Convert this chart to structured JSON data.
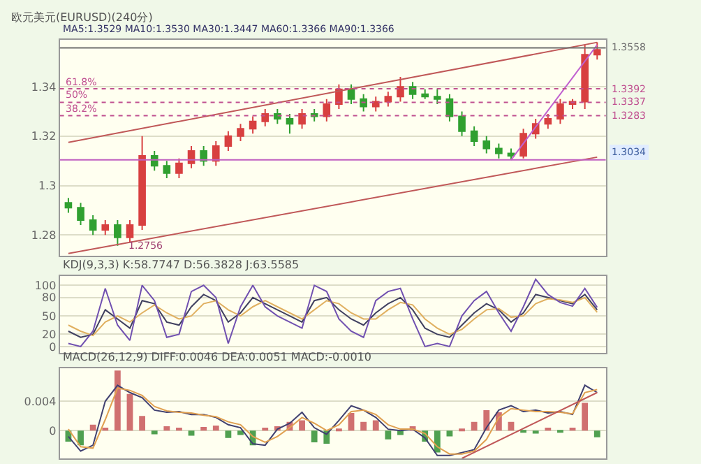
{
  "chart_data": [
    {
      "type": "candlestick",
      "title": "欧元美元(EURUSD)(240分)",
      "subtitle": "MA5:1.3529 MA10:1.3530 MA30:1.3447 MA60:1.3366 MA90:1.3366",
      "categories": [
        null,
        null,
        null,
        null,
        null,
        null,
        null,
        null,
        null,
        null,
        null,
        null,
        null,
        null,
        null,
        null,
        null,
        null,
        null,
        null,
        null,
        null,
        null,
        null,
        null,
        null,
        null,
        null,
        null,
        null,
        null,
        null,
        null,
        null,
        null,
        null,
        null,
        null,
        null,
        null,
        null,
        null,
        null,
        null
      ],
      "ohlc": [
        [
          1.293,
          1.295,
          1.289,
          1.291
        ],
        [
          1.291,
          1.293,
          1.284,
          1.286
        ],
        [
          1.286,
          1.288,
          1.28,
          1.282
        ],
        [
          1.282,
          1.286,
          1.28,
          1.284
        ],
        [
          1.284,
          1.286,
          1.2756,
          1.279
        ],
        [
          1.279,
          1.286,
          1.277,
          1.284
        ],
        [
          1.284,
          1.32,
          1.282,
          1.312
        ],
        [
          1.312,
          1.314,
          1.306,
          1.308
        ],
        [
          1.308,
          1.31,
          1.303,
          1.305
        ],
        [
          1.305,
          1.311,
          1.303,
          1.309
        ],
        [
          1.309,
          1.316,
          1.307,
          1.314
        ],
        [
          1.314,
          1.316,
          1.308,
          1.31
        ],
        [
          1.31,
          1.318,
          1.308,
          1.316
        ],
        [
          1.316,
          1.322,
          1.314,
          1.32
        ],
        [
          1.32,
          1.325,
          1.318,
          1.323
        ],
        [
          1.323,
          1.328,
          1.321,
          1.326
        ],
        [
          1.326,
          1.331,
          1.324,
          1.329
        ],
        [
          1.329,
          1.331,
          1.325,
          1.327
        ],
        [
          1.327,
          1.329,
          1.321,
          1.325
        ],
        [
          1.325,
          1.331,
          1.323,
          1.329
        ],
        [
          1.329,
          1.331,
          1.326,
          1.328
        ],
        [
          1.328,
          1.335,
          1.326,
          1.333
        ],
        [
          1.333,
          1.341,
          1.331,
          1.339
        ],
        [
          1.339,
          1.341,
          1.333,
          1.335
        ],
        [
          1.335,
          1.337,
          1.33,
          1.332
        ],
        [
          1.332,
          1.336,
          1.33,
          1.334
        ],
        [
          1.334,
          1.338,
          1.332,
          1.336
        ],
        [
          1.336,
          1.344,
          1.334,
          1.34
        ],
        [
          1.34,
          1.342,
          1.335,
          1.337
        ],
        [
          1.337,
          1.339,
          1.335,
          1.336
        ],
        [
          1.336,
          1.339,
          1.333,
          1.335
        ],
        [
          1.335,
          1.337,
          1.326,
          1.328
        ],
        [
          1.328,
          1.33,
          1.32,
          1.322
        ],
        [
          1.322,
          1.324,
          1.316,
          1.318
        ],
        [
          1.318,
          1.32,
          1.313,
          1.315
        ],
        [
          1.315,
          1.317,
          1.311,
          1.313
        ],
        [
          1.313,
          1.315,
          1.3104,
          1.312
        ],
        [
          1.312,
          1.323,
          1.311,
          1.321
        ],
        [
          1.321,
          1.327,
          1.319,
          1.325
        ],
        [
          1.325,
          1.329,
          1.323,
          1.327
        ],
        [
          1.327,
          1.335,
          1.325,
          1.333
        ],
        [
          1.333,
          1.335,
          1.331,
          1.334
        ],
        [
          1.334,
          1.357,
          1.331,
          1.353
        ],
        [
          1.353,
          1.358,
          1.351,
          1.355
        ]
      ],
      "colors": [
        "#30a030",
        "#30a030",
        "#30a030",
        "#d84040",
        "#30a030",
        "#d84040",
        "#d84040",
        "#30a030",
        "#30a030",
        "#d84040",
        "#d84040",
        "#30a030",
        "#d84040",
        "#d84040",
        "#d84040",
        "#d84040",
        "#d84040",
        "#30a030",
        "#30a030",
        "#d84040",
        "#30a030",
        "#d84040",
        "#d84040",
        "#30a030",
        "#30a030",
        "#d84040",
        "#d84040",
        "#d84040",
        "#30a030",
        "#30a030",
        "#30a030",
        "#30a030",
        "#30a030",
        "#30a030",
        "#30a030",
        "#30a030",
        "#30a030",
        "#d84040",
        "#d84040",
        "#d84040",
        "#d84040",
        "#d84040",
        "#d84040",
        "#d84040"
      ],
      "series": [
        {
          "type": "line",
          "color": "#c05858",
          "values": [
            1.2725,
            null,
            null,
            null,
            null,
            null,
            null,
            null,
            null,
            null,
            null,
            null,
            null,
            null,
            null,
            null,
            null,
            null,
            null,
            null,
            null,
            null,
            null,
            null,
            null,
            null,
            null,
            null,
            null,
            null,
            null,
            null,
            null,
            null,
            null,
            null,
            null,
            null,
            null,
            null,
            null,
            null,
            null,
            1.3115
          ]
        },
        {
          "type": "line",
          "color": "#c05858",
          "values": [
            1.3175,
            null,
            null,
            null,
            null,
            null,
            null,
            null,
            null,
            null,
            null,
            null,
            null,
            null,
            null,
            null,
            null,
            null,
            null,
            null,
            null,
            null,
            null,
            null,
            null,
            null,
            null,
            null,
            null,
            null,
            null,
            null,
            null,
            null,
            null,
            null,
            null,
            null,
            null,
            null,
            null,
            null,
            null,
            1.358
          ]
        },
        {
          "type": "line",
          "color": "#c060d0",
          "values": [
            null,
            null,
            null,
            null,
            null,
            null,
            null,
            null,
            null,
            null,
            null,
            null,
            null,
            null,
            null,
            null,
            null,
            null,
            null,
            null,
            null,
            null,
            null,
            null,
            null,
            null,
            null,
            null,
            null,
            null,
            null,
            null,
            null,
            null,
            null,
            null,
            1.3104,
            null,
            null,
            null,
            null,
            null,
            null,
            1.357
          ]
        }
      ],
      "ylim": [
        1.2715,
        1.359
      ],
      "yticks": [
        1.28,
        1.3,
        1.32,
        1.34
      ],
      "grid": "y",
      "ref_lines": [
        {
          "axis": "y",
          "value": 1.3558,
          "label": "1.3558",
          "color": "#707070",
          "line_style": "solid"
        },
        {
          "axis": "y",
          "value": 1.3392,
          "label": "1.3392",
          "color": "#c05090",
          "line_style": "dotted"
        },
        {
          "axis": "y",
          "value": 1.3337,
          "label": "1.3337",
          "color": "#c05090",
          "line_style": "dotted"
        },
        {
          "axis": "y",
          "value": 1.3283,
          "label": "1.3283",
          "color": "#c05090",
          "line_style": "dotted"
        },
        {
          "axis": "y",
          "value": 1.3104,
          "color": "#c060c0",
          "line_style": "solid"
        }
      ],
      "annotations": [
        "61.8%",
        "50%",
        "38.2%",
        "1.3034",
        {
          "text": "1.2756",
          "y": 1.2756
        }
      ]
    },
    {
      "type": "line",
      "title": "KDJ(9,3,3) K:58.7747 D:56.3828 J:63.5585",
      "categories": [
        null,
        null,
        null,
        null,
        null,
        null,
        null,
        null,
        null,
        null,
        null,
        null,
        null,
        null,
        null,
        null,
        null,
        null,
        null,
        null,
        null,
        null,
        null,
        null,
        null,
        null,
        null,
        null,
        null,
        null,
        null,
        null,
        null,
        null,
        null,
        null,
        null,
        null,
        null,
        null,
        null,
        null,
        null,
        null
      ],
      "series": [
        {
          "color": "#404060",
          "values": [
            25,
            15,
            20,
            60,
            45,
            30,
            75,
            70,
            40,
            35,
            65,
            85,
            75,
            40,
            55,
            80,
            70,
            60,
            50,
            40,
            75,
            80,
            60,
            45,
            35,
            55,
            70,
            80,
            60,
            30,
            20,
            15,
            35,
            55,
            70,
            60,
            40,
            55,
            85,
            80,
            75,
            70,
            85,
            60
          ]
        },
        {
          "color": "#e0b060",
          "values": [
            35,
            25,
            18,
            40,
            50,
            40,
            55,
            68,
            55,
            45,
            50,
            70,
            75,
            60,
            50,
            65,
            75,
            65,
            55,
            45,
            60,
            75,
            70,
            55,
            45,
            45,
            60,
            72,
            68,
            45,
            30,
            20,
            28,
            45,
            60,
            62,
            48,
            50,
            70,
            78,
            76,
            72,
            80,
            56
          ]
        },
        {
          "color": "#7050b0",
          "values": [
            5,
            0,
            25,
            95,
            35,
            10,
            100,
            75,
            15,
            20,
            90,
            100,
            80,
            5,
            65,
            100,
            65,
            50,
            40,
            30,
            100,
            90,
            45,
            25,
            15,
            75,
            90,
            95,
            45,
            0,
            5,
            0,
            50,
            75,
            90,
            55,
            25,
            65,
            110,
            85,
            72,
            66,
            95,
            64
          ]
        }
      ],
      "ylim": [
        -10,
        115
      ],
      "yticks": [
        0,
        20,
        50,
        80,
        100
      ],
      "grid": "y"
    },
    {
      "type": "bar",
      "title": "MACD(26,12,9) DIFF:0.0046 DEA:0.0051 MACD:-0.0010",
      "categories": [
        null,
        null,
        null,
        null,
        null,
        null,
        null,
        null,
        null,
        null,
        null,
        null,
        null,
        null,
        null,
        null,
        null,
        null,
        null,
        null,
        null,
        null,
        null,
        null,
        null,
        null,
        null,
        null,
        null,
        null,
        null,
        null,
        null,
        null,
        null,
        null,
        null,
        null,
        null,
        null,
        null,
        null,
        null,
        null
      ],
      "series": [
        {
          "type": "bar",
          "values": [
            -0.0015,
            -0.002,
            0.0008,
            0.0004,
            0.0082,
            0.005,
            0.002,
            -0.0005,
            0.0006,
            0.0004,
            -0.0007,
            0.0005,
            0.0007,
            -0.001,
            -0.0006,
            -0.002,
            0.0004,
            0.0006,
            0.0012,
            0.0014,
            -0.0016,
            -0.0018,
            0.0002,
            0.0024,
            0.0012,
            0.0014,
            -0.0012,
            -0.0006,
            0.0006,
            -0.0015,
            -0.003,
            -0.0008,
            0.0002,
            0.0012,
            0.0028,
            0.0025,
            0.0012,
            -0.0003,
            -0.0004,
            0.0004,
            -0.0003,
            0.0004,
            0.0038,
            -0.0009
          ],
          "colors": [
            "#50a050",
            "#50a050",
            "#d07070",
            "#d07070",
            "#d07070",
            "#d07070",
            "#d07070",
            "#50a050",
            "#d07070",
            "#d07070",
            "#50a050",
            "#d07070",
            "#d07070",
            "#50a050",
            "#50a050",
            "#50a050",
            "#d07070",
            "#d07070",
            "#d07070",
            "#d07070",
            "#50a050",
            "#50a050",
            "#d07070",
            "#d07070",
            "#d07070",
            "#d07070",
            "#50a050",
            "#50a050",
            "#d07070",
            "#50a050",
            "#50a050",
            "#50a050",
            "#d07070",
            "#d07070",
            "#d07070",
            "#d07070",
            "#d07070",
            "#50a050",
            "#50a050",
            "#d07070",
            "#50a050",
            "#d07070",
            "#d07070",
            "#50a050"
          ]
        },
        {
          "type": "line",
          "color": "#404070",
          "values": [
            -0.0008,
            -0.0028,
            -0.002,
            0.004,
            0.0062,
            0.0052,
            0.0045,
            0.0028,
            0.0025,
            0.0026,
            0.0022,
            0.0022,
            0.0018,
            0.0008,
            0.0004,
            -0.0018,
            -0.002,
            0.0002,
            0.001,
            0.0025,
            0.0004,
            -0.0005,
            0.0014,
            0.0034,
            0.0028,
            0.0018,
            0.0002,
            0,
            0.0002,
            -0.001,
            -0.0034,
            -0.0034,
            -0.003,
            -0.0026,
            0.0004,
            0.0028,
            0.0034,
            0.0026,
            0.0028,
            0.0024,
            0.0026,
            0.0022,
            0.0062,
            0.0052
          ]
        },
        {
          "type": "line",
          "color": "#e0a050",
          "values": [
            0.0002,
            -0.0022,
            -0.0024,
            0.0015,
            0.0058,
            0.0055,
            0.0048,
            0.0033,
            0.0027,
            0.0025,
            0.0024,
            0.0021,
            0.0019,
            0.0012,
            0.0008,
            -0.0008,
            -0.0016,
            -0.0008,
            0.0004,
            0.0018,
            0.001,
            0,
            0.0008,
            0.0026,
            0.0028,
            0.0022,
            0.0008,
            0.0002,
            0.0002,
            -0.0004,
            -0.0022,
            -0.0032,
            -0.0032,
            -0.0028,
            -0.0012,
            0.0018,
            0.003,
            0.0028,
            0.0026,
            0.0026,
            0.0025,
            0.0023,
            0.0052,
            0.0056
          ]
        },
        {
          "type": "line",
          "color": "#c05858",
          "values": [
            null,
            null,
            null,
            null,
            null,
            null,
            null,
            null,
            null,
            null,
            null,
            null,
            null,
            null,
            null,
            null,
            null,
            null,
            null,
            null,
            null,
            null,
            null,
            null,
            null,
            null,
            null,
            null,
            null,
            null,
            null,
            null,
            -0.0038,
            null,
            null,
            null,
            null,
            null,
            null,
            null,
            null,
            null,
            null,
            0.0052
          ]
        }
      ],
      "ylim": [
        -0.0038,
        0.0085
      ],
      "yticks": [
        {
          "value": 0,
          "label": "0"
        },
        {
          "value": 0.004,
          "label": "0.004"
        }
      ],
      "grid": "y"
    }
  ]
}
